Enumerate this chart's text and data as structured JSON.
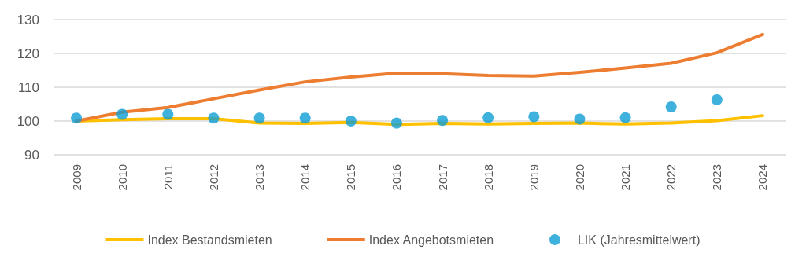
{
  "chart_data": {
    "type": "line",
    "categories": [
      "2009",
      "2010",
      "2011",
      "2012",
      "2013",
      "2014",
      "2015",
      "2016",
      "2017",
      "2018",
      "2019",
      "2020",
      "2021",
      "2022",
      "2023",
      "2024"
    ],
    "series": [
      {
        "name": "Index Bestandsmieten",
        "color": "#ffc000",
        "values": [
          100,
          100.4,
          100.7,
          100.7,
          99.4,
          99.3,
          99.6,
          99,
          99.3,
          99.1,
          99.3,
          99.4,
          99.1,
          99.4,
          100.1,
          101.6
        ]
      },
      {
        "name": "Index Angebotsmieten",
        "color": "#ed7d31",
        "values": [
          100,
          102.6,
          104,
          106.6,
          109.2,
          111.6,
          113,
          114.2,
          114,
          113.5,
          113.3,
          114.4,
          115.7,
          117.1,
          120.2,
          125.6
        ]
      },
      {
        "name": "LIK (Jahresmittelwert)",
        "type": "scatter",
        "color": "#0e9ed5",
        "marker": "circle",
        "values": [
          100.9,
          102,
          102,
          100.9,
          100.9,
          100.9,
          100,
          99.4,
          100.2,
          101,
          101.3,
          100.6,
          101,
          104.2,
          106.3,
          null
        ]
      }
    ],
    "ylim": [
      90,
      130
    ],
    "yticks": [
      90,
      100,
      110,
      120,
      130
    ],
    "grid": "y",
    "legend": "bottom",
    "marker": "none",
    "line_style": "solid"
  }
}
